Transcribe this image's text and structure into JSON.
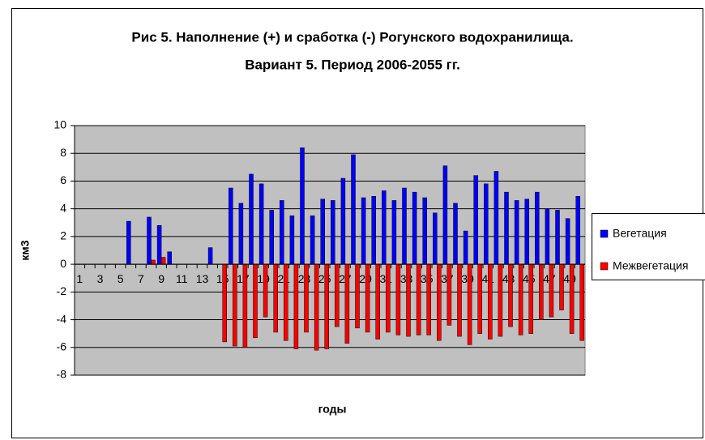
{
  "chart_data": {
    "type": "bar",
    "title": "Рис 5. Наполнение (+) и сработка (-) Рогунского водохранилища.",
    "subtitle": "Вариант 5. Период 2006-2055 гг.",
    "x_label": "годы",
    "y_label": "км3",
    "categories": [
      "1",
      null,
      "3",
      null,
      "5",
      null,
      "7",
      null,
      "9",
      null,
      "11",
      null,
      "13",
      null,
      "15",
      null,
      "17",
      null,
      "19",
      null,
      "21",
      null,
      "23",
      null,
      "25",
      null,
      "27",
      null,
      "29",
      null,
      "31",
      null,
      "33",
      null,
      "35",
      null,
      "37",
      null,
      "39",
      null,
      "41",
      null,
      "43",
      null,
      "45",
      null,
      "47",
      null,
      "49",
      null
    ],
    "series": [
      {
        "name": "Вегетация",
        "color": "#0000ff",
        "values": [
          0,
          0,
          0,
          0,
          0,
          3.1,
          0,
          3.4,
          2.8,
          0.9,
          0,
          0,
          0,
          1.2,
          0,
          5.5,
          4.4,
          6.5,
          5.8,
          3.9,
          4.6,
          3.5,
          8.4,
          3.5,
          4.7,
          4.6,
          6.2,
          7.9,
          4.8,
          4.9,
          5.3,
          4.6,
          5.5,
          5.2,
          4.8,
          3.7,
          7.1,
          4.4,
          2.4,
          6.4,
          5.8,
          6.7,
          5.2,
          4.6,
          4.7,
          5.2,
          4.0,
          3.9,
          3.3,
          4.9
        ]
      },
      {
        "name": "Межвегетация",
        "color": "#ff0000",
        "values": [
          0,
          0,
          0,
          0,
          0,
          0,
          0,
          0.3,
          0.5,
          0,
          0,
          0,
          0,
          0,
          -5.6,
          -5.9,
          -6.0,
          -5.3,
          -3.8,
          -4.9,
          -5.5,
          -6.1,
          -4.9,
          -6.2,
          -6.1,
          -4.5,
          -5.7,
          -4.6,
          -4.9,
          -5.4,
          -4.9,
          -5.1,
          -5.2,
          -5.1,
          -5.1,
          -5.5,
          -4.4,
          -5.2,
          -5.8,
          -5.0,
          -5.4,
          -5.2,
          -4.5,
          -5.1,
          -5.0,
          -4.0,
          -3.8,
          -3.3,
          -5.0,
          -5.5
        ]
      }
    ],
    "ylim": [
      -8,
      10
    ],
    "yticks": [
      -8,
      -6,
      -4,
      -2,
      0,
      2,
      4,
      6,
      8,
      10
    ],
    "grid": true,
    "legend": "right"
  }
}
